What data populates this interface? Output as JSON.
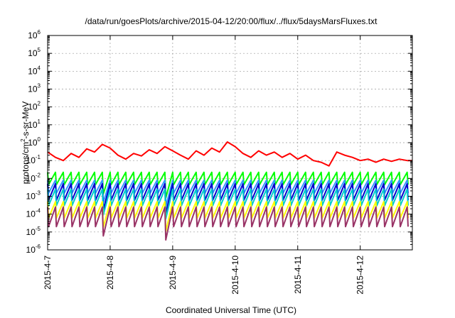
{
  "chart_data": {
    "type": "line",
    "title": "/data/run/goesPlots/archive/2015-04-12/20:00/flux/../flux/5daysMarsFluxes.txt",
    "xlabel": "Coordinated Universal Time (UTC)",
    "ylabel_parts": [
      "protons/cm",
      "2",
      "-s-sr-MeV"
    ],
    "y_scale": "log",
    "ylim": [
      1e-06,
      1000000.0
    ],
    "y_ticks": [
      {
        "base": "10",
        "exp": "-6",
        "value": 1e-06
      },
      {
        "base": "10",
        "exp": "-5",
        "value": 1e-05
      },
      {
        "base": "10",
        "exp": "-4",
        "value": 0.0001
      },
      {
        "base": "10",
        "exp": "-3",
        "value": 0.001
      },
      {
        "base": "10",
        "exp": "-2",
        "value": 0.01
      },
      {
        "base": "10",
        "exp": "-1",
        "value": 0.1
      },
      {
        "base": "10",
        "exp": "0",
        "value": 1.0
      },
      {
        "base": "10",
        "exp": "1",
        "value": 10.0
      },
      {
        "base": "10",
        "exp": "2",
        "value": 100.0
      },
      {
        "base": "10",
        "exp": "3",
        "value": 1000.0
      },
      {
        "base": "10",
        "exp": "4",
        "value": 10000.0
      },
      {
        "base": "10",
        "exp": "5",
        "value": 100000.0
      },
      {
        "base": "10",
        "exp": "6",
        "value": 1000000.0
      }
    ],
    "xlim": [
      "2015-04-07",
      "2015-04-12T20:00"
    ],
    "x_ticks": [
      "2015-4-7",
      "2015-4-8",
      "2015-4-9",
      "2015-4-10",
      "2015-4-11",
      "2015-4-12"
    ],
    "x_tick_dates": [
      "2015-04-07",
      "2015-04-08",
      "2015-04-09",
      "2015-04-10",
      "2015-04-11",
      "2015-04-12"
    ],
    "grid": true,
    "legend": "none",
    "series": [
      {
        "color": "#ff0000",
        "x": [
          "2015-04-07T00:00",
          "2015-04-07T03:00",
          "2015-04-07T06:00",
          "2015-04-07T09:00",
          "2015-04-07T12:00",
          "2015-04-07T15:00",
          "2015-04-07T18:00",
          "2015-04-07T21:00",
          "2015-04-08T00:00",
          "2015-04-08T03:00",
          "2015-04-08T06:00",
          "2015-04-08T09:00",
          "2015-04-08T12:00",
          "2015-04-08T15:00",
          "2015-04-08T18:00",
          "2015-04-08T21:00",
          "2015-04-09T00:00",
          "2015-04-09T03:00",
          "2015-04-09T06:00",
          "2015-04-09T09:00",
          "2015-04-09T12:00",
          "2015-04-09T15:00",
          "2015-04-09T18:00",
          "2015-04-09T21:00",
          "2015-04-10T00:00",
          "2015-04-10T03:00",
          "2015-04-10T06:00",
          "2015-04-10T09:00",
          "2015-04-10T12:00",
          "2015-04-10T15:00",
          "2015-04-10T18:00",
          "2015-04-10T21:00",
          "2015-04-11T00:00",
          "2015-04-11T03:00",
          "2015-04-11T06:00",
          "2015-04-11T09:00",
          "2015-04-11T12:00",
          "2015-04-11T15:00",
          "2015-04-11T18:00",
          "2015-04-11T21:00",
          "2015-04-12T00:00",
          "2015-04-12T03:00",
          "2015-04-12T06:00",
          "2015-04-12T09:00",
          "2015-04-12T12:00",
          "2015-04-12T15:00",
          "2015-04-12T18:00",
          "2015-04-12T20:00"
        ],
        "y": [
          0.3,
          0.15,
          0.1,
          0.25,
          0.15,
          0.45,
          0.3,
          0.8,
          0.5,
          0.2,
          0.12,
          0.25,
          0.18,
          0.4,
          0.25,
          0.6,
          0.35,
          0.2,
          0.12,
          0.35,
          0.2,
          0.5,
          0.3,
          1.1,
          0.6,
          0.25,
          0.15,
          0.35,
          0.2,
          0.3,
          0.15,
          0.25,
          0.12,
          0.2,
          0.1,
          0.08,
          0.05,
          0.3,
          0.2,
          0.15,
          0.1,
          0.12,
          0.08,
          0.12,
          0.09,
          0.12,
          0.1,
          0.1
        ]
      },
      {
        "color": "#00ff00",
        "x_start": "2015-04-07",
        "period_hours": 3,
        "peak": 0.022,
        "trough": 0.0045
      },
      {
        "color": "#3399ff",
        "x_start": "2015-04-07",
        "period_hours": 3,
        "peak": 0.008,
        "trough": 0.0015
      },
      {
        "color": "#0000cc",
        "x_start": "2015-04-07",
        "period_hours": 3,
        "peak": 0.005,
        "trough": 0.0006
      },
      {
        "color": "#00cccc",
        "x_start": "2015-04-07",
        "period_hours": 3,
        "peak": 0.0025,
        "trough": 0.0003
      },
      {
        "color": "#ffff00",
        "x_start": "2015-04-07",
        "period_hours": 3,
        "peak": 0.0005,
        "trough": 6e-05
      },
      {
        "color": "#993366",
        "x_start": "2015-04-07",
        "period_hours": 3,
        "peak": 0.00025,
        "trough": 2e-05
      }
    ],
    "dips": [
      {
        "x": "2015-04-07T21:00",
        "factor": 0.3
      },
      {
        "x": "2015-04-08T21:00",
        "factor": 0.18
      }
    ]
  }
}
